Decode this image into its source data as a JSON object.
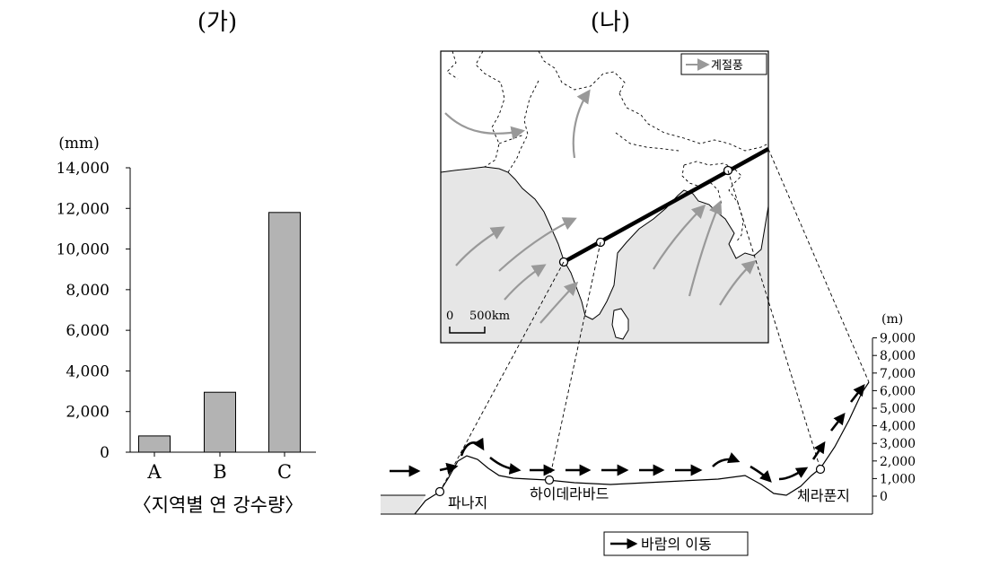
{
  "panel_left": {
    "label": "(가)"
  },
  "panel_right": {
    "label": "(나)"
  },
  "chart_data": {
    "type": "bar",
    "categories": [
      "A",
      "B",
      "C"
    ],
    "values": [
      800,
      2950,
      11800
    ],
    "ylabel": "(mm)",
    "ylim": [
      0,
      14000
    ],
    "yticks": [
      0,
      2000,
      4000,
      6000,
      8000,
      10000,
      12000,
      14000
    ],
    "ytick_labels": [
      "0",
      "2,000",
      "4,000",
      "6,000",
      "8,000",
      "10,000",
      "12,000",
      "14,000"
    ],
    "caption": "〈지역별 연 강수량〉",
    "bar_color": "#b3b3b3"
  },
  "map": {
    "legend_label": "계절풍",
    "scale_zero": "0",
    "scale_label": "500km",
    "sea_color": "#e6e6e6",
    "arrow_color": "#999999"
  },
  "profile": {
    "unit": "(m)",
    "ticks": [
      0,
      1000,
      2000,
      3000,
      4000,
      5000,
      6000,
      7000,
      8000,
      9000
    ],
    "tick_labels": [
      "0",
      "1,000",
      "2,000",
      "3,000",
      "4,000",
      "5,000",
      "6,000",
      "7,000",
      "8,000",
      "9,000"
    ],
    "places": [
      "파나지",
      "하이데라바드",
      "체라푼지"
    ],
    "legend_label": "바람의 이동"
  }
}
